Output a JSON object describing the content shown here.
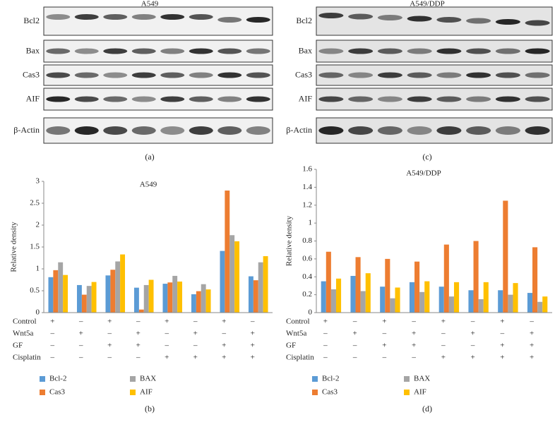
{
  "blots": [
    {
      "title": "A549",
      "rows": [
        "Bcl2",
        "Bax",
        "Cas3",
        "AIF",
        "β-Actin"
      ],
      "label": "(a)"
    },
    {
      "title": "A549/DDP",
      "rows": [
        "Bcl2",
        "Bax",
        "Cas3",
        "AIF",
        "β-Actin"
      ],
      "label": "(c)"
    }
  ],
  "chart_data": [
    {
      "type": "bar",
      "title": "A549",
      "y_label": "Relative density",
      "panel_label": "(b)",
      "categories": [
        null,
        null,
        null,
        null,
        null,
        null,
        null,
        null
      ],
      "series": [
        {
          "name": "Bcl-2",
          "color": "#5b9bd5",
          "values": [
            0.81,
            0.63,
            0.85,
            0.57,
            0.66,
            0.42,
            1.41,
            0.83
          ]
        },
        {
          "name": "Cas3",
          "color": "#ed7d31",
          "values": [
            0.97,
            0.41,
            0.98,
            0.07,
            0.69,
            0.49,
            2.79,
            0.74
          ]
        },
        {
          "name": "BAX",
          "color": "#a5a5a5",
          "values": [
            1.15,
            0.61,
            1.17,
            0.63,
            0.84,
            0.65,
            1.77,
            1.15
          ]
        },
        {
          "name": "AIF",
          "color": "#ffc000",
          "values": [
            0.86,
            0.7,
            1.33,
            0.75,
            0.71,
            0.53,
            1.63,
            1.29
          ]
        }
      ],
      "ylim": [
        0,
        3
      ],
      "yticks": [
        0,
        0.5,
        1,
        1.5,
        2,
        2.5,
        3
      ],
      "grid": false,
      "treatments": [
        {
          "name": "Control",
          "signs": [
            "+",
            "–",
            "+",
            "–",
            "+",
            "–",
            "+",
            "–"
          ]
        },
        {
          "name": "Wnt5a",
          "signs": [
            "–",
            "+",
            "–",
            "+",
            "–",
            "+",
            "–",
            "+"
          ]
        },
        {
          "name": "GF",
          "signs": [
            "–",
            "–",
            "+",
            "+",
            "–",
            "–",
            "+",
            "+"
          ]
        },
        {
          "name": "Cisplatin",
          "signs": [
            "–",
            "–",
            "–",
            "–",
            "+",
            "+",
            "+",
            "+"
          ]
        }
      ]
    },
    {
      "type": "bar",
      "title": "A549/DDP",
      "y_label": "Relative density",
      "panel_label": "(d)",
      "categories": [
        null,
        null,
        null,
        null,
        null,
        null,
        null,
        null
      ],
      "series": [
        {
          "name": "Bcl-2",
          "color": "#5b9bd5",
          "values": [
            0.35,
            0.41,
            0.29,
            0.34,
            0.29,
            0.25,
            0.25,
            0.22
          ]
        },
        {
          "name": "Cas3",
          "color": "#ed7d31",
          "values": [
            0.68,
            0.62,
            0.6,
            0.57,
            0.76,
            0.8,
            1.25,
            0.73
          ]
        },
        {
          "name": "BAX",
          "color": "#a5a5a5",
          "values": [
            0.26,
            0.24,
            0.16,
            0.23,
            0.18,
            0.15,
            0.2,
            0.12
          ]
        },
        {
          "name": "AIF",
          "color": "#ffc000",
          "values": [
            0.38,
            0.44,
            0.28,
            0.35,
            0.34,
            0.34,
            0.33,
            0.18
          ]
        }
      ],
      "ylim": [
        0,
        1.6
      ],
      "yticks": [
        0,
        0.2,
        0.4,
        0.6,
        0.8,
        1,
        1.2,
        1.4,
        1.6
      ],
      "grid": false,
      "treatments": [
        {
          "name": "Control",
          "signs": [
            "+",
            "–",
            "+",
            "–",
            "+",
            "–",
            "+",
            "–"
          ]
        },
        {
          "name": "Wnt5a",
          "signs": [
            "–",
            "+",
            "–",
            "+",
            "–",
            "+",
            "–",
            "+"
          ]
        },
        {
          "name": "GF",
          "signs": [
            "–",
            "–",
            "+",
            "+",
            "–",
            "–",
            "+",
            "+"
          ]
        },
        {
          "name": "Cisplatin",
          "signs": [
            "–",
            "–",
            "–",
            "–",
            "+",
            "+",
            "+",
            "+"
          ]
        }
      ]
    }
  ]
}
